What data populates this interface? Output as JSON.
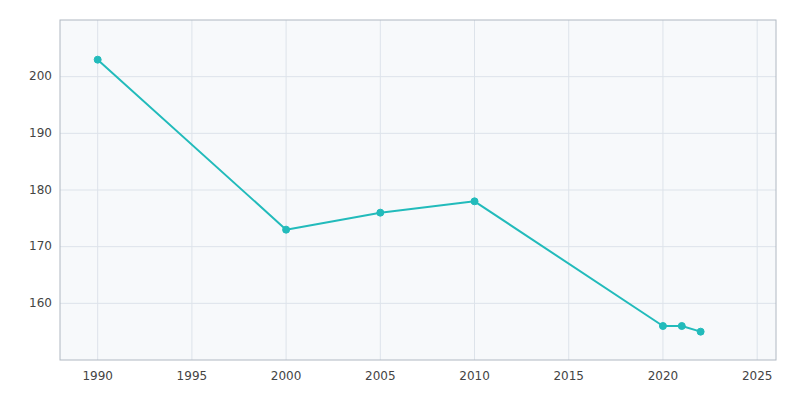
{
  "chart_data": {
    "type": "line",
    "x": [
      1990,
      2000,
      2005,
      2010,
      2020,
      2021,
      2022
    ],
    "values": [
      203,
      173,
      176,
      178,
      156,
      156,
      155
    ],
    "color": "#22BBBB",
    "marker": "circle",
    "xlim": [
      1988,
      2026
    ],
    "ylim": [
      150,
      210
    ],
    "xticks": [
      1990,
      1995,
      2000,
      2005,
      2010,
      2015,
      2020,
      2025
    ],
    "yticks": [
      160,
      170,
      180,
      190,
      200
    ],
    "grid": true
  }
}
